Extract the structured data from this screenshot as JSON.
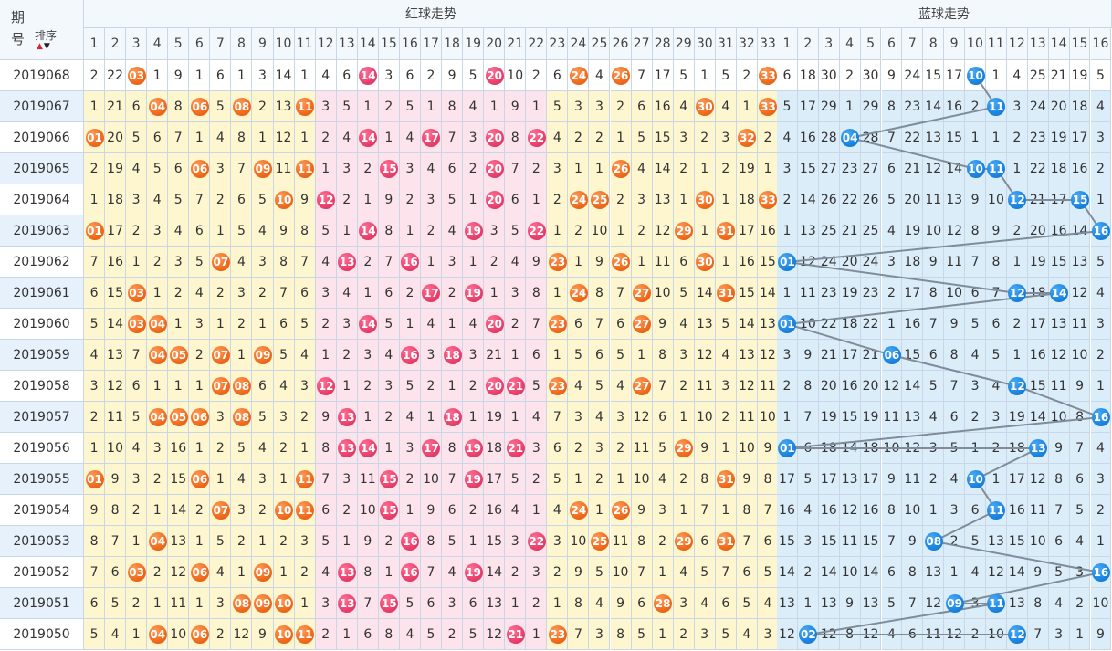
{
  "header": {
    "period_top": "期",
    "period_bottom": "号",
    "sort_label": "排序",
    "red_title": "红球走势",
    "blue_title": "蓝球走势",
    "red_cols": [
      "1",
      "2",
      "3",
      "4",
      "5",
      "6",
      "7",
      "8",
      "9",
      "10",
      "11",
      "12",
      "13",
      "14",
      "15",
      "16",
      "17",
      "18",
      "19",
      "20",
      "21",
      "22",
      "23",
      "24",
      "25",
      "26",
      "27",
      "28",
      "29",
      "30",
      "31",
      "32",
      "33"
    ],
    "blue_cols": [
      "1",
      "2",
      "3",
      "4",
      "5",
      "6",
      "7",
      "8",
      "9",
      "10",
      "11",
      "12",
      "13",
      "14",
      "15",
      "16"
    ]
  },
  "rows": [
    {
      "period": "2019068",
      "red": [
        "2",
        "22",
        "03",
        "1",
        "9",
        "1",
        "6",
        "1",
        "3",
        "14",
        "1",
        "4",
        "6",
        "14",
        "3",
        "6",
        "2",
        "9",
        "5",
        "20",
        "10",
        "2",
        "6",
        "24",
        "4",
        "26",
        "7",
        "17",
        "5",
        "1",
        "5",
        "2",
        "33"
      ],
      "blue": [
        "6",
        "18",
        "30",
        "2",
        "30",
        "9",
        "24",
        "15",
        "17",
        "10",
        "1",
        "4",
        "25",
        "21",
        "19",
        "5"
      ]
    },
    {
      "period": "2019067",
      "red": [
        "1",
        "21",
        "6",
        "04",
        "8",
        "06",
        "5",
        "08",
        "2",
        "13",
        "11",
        "3",
        "5",
        "1",
        "2",
        "5",
        "1",
        "8",
        "4",
        "1",
        "9",
        "1",
        "5",
        "3",
        "3",
        "2",
        "6",
        "16",
        "4",
        "30",
        "4",
        "1",
        "33"
      ],
      "blue": [
        "5",
        "17",
        "29",
        "1",
        "29",
        "8",
        "23",
        "14",
        "16",
        "2",
        "11",
        "3",
        "24",
        "20",
        "18",
        "4"
      ]
    },
    {
      "period": "2019066",
      "red": [
        "01",
        "20",
        "5",
        "6",
        "7",
        "1",
        "4",
        "8",
        "1",
        "12",
        "1",
        "2",
        "4",
        "14",
        "1",
        "4",
        "17",
        "7",
        "3",
        "20",
        "8",
        "22",
        "4",
        "2",
        "2",
        "1",
        "5",
        "15",
        "3",
        "2",
        "3",
        "32",
        "2"
      ],
      "blue": [
        "4",
        "16",
        "28",
        "04",
        "28",
        "7",
        "22",
        "13",
        "15",
        "1",
        "1",
        "2",
        "23",
        "19",
        "17",
        "3"
      ]
    },
    {
      "period": "2019065",
      "red": [
        "2",
        "19",
        "4",
        "5",
        "6",
        "06",
        "3",
        "7",
        "09",
        "11",
        "11",
        "1",
        "3",
        "2",
        "15",
        "3",
        "4",
        "6",
        "2",
        "20",
        "7",
        "2",
        "3",
        "1",
        "1",
        "26",
        "4",
        "14",
        "2",
        "1",
        "2",
        "19",
        "1"
      ],
      "blue": [
        "3",
        "15",
        "27",
        "23",
        "27",
        "6",
        "21",
        "12",
        "14",
        "10",
        "11",
        "1",
        "22",
        "18",
        "16",
        "2"
      ]
    },
    {
      "period": "2019064",
      "red": [
        "1",
        "18",
        "3",
        "4",
        "5",
        "7",
        "2",
        "6",
        "5",
        "10",
        "9",
        "12",
        "2",
        "1",
        "9",
        "2",
        "3",
        "5",
        "1",
        "20",
        "6",
        "1",
        "2",
        "24",
        "25",
        "2",
        "3",
        "13",
        "1",
        "30",
        "1",
        "18",
        "33"
      ],
      "blue": [
        "2",
        "14",
        "26",
        "22",
        "26",
        "5",
        "20",
        "11",
        "13",
        "9",
        "10",
        "12",
        "21",
        "17",
        "15",
        "1"
      ]
    },
    {
      "period": "2019063",
      "red": [
        "01",
        "17",
        "2",
        "3",
        "4",
        "6",
        "1",
        "5",
        "4",
        "9",
        "8",
        "5",
        "1",
        "14",
        "8",
        "1",
        "2",
        "4",
        "19",
        "3",
        "5",
        "22",
        "1",
        "2",
        "10",
        "1",
        "2",
        "12",
        "29",
        "1",
        "31",
        "17",
        "16"
      ],
      "blue": [
        "1",
        "13",
        "25",
        "21",
        "25",
        "4",
        "19",
        "10",
        "12",
        "8",
        "9",
        "2",
        "20",
        "16",
        "14",
        "16"
      ]
    },
    {
      "period": "2019062",
      "red": [
        "7",
        "16",
        "1",
        "2",
        "3",
        "5",
        "07",
        "4",
        "3",
        "8",
        "7",
        "4",
        "13",
        "2",
        "7",
        "16",
        "1",
        "3",
        "1",
        "2",
        "4",
        "9",
        "23",
        "1",
        "9",
        "26",
        "1",
        "11",
        "6",
        "30",
        "1",
        "16",
        "15"
      ],
      "blue": [
        "01",
        "12",
        "24",
        "20",
        "24",
        "3",
        "18",
        "9",
        "11",
        "7",
        "8",
        "1",
        "19",
        "15",
        "13",
        "5"
      ]
    },
    {
      "period": "2019061",
      "red": [
        "6",
        "15",
        "03",
        "1",
        "2",
        "4",
        "2",
        "3",
        "2",
        "7",
        "6",
        "3",
        "4",
        "1",
        "6",
        "2",
        "17",
        "2",
        "19",
        "1",
        "3",
        "8",
        "1",
        "24",
        "8",
        "7",
        "27",
        "10",
        "5",
        "14",
        "31",
        "15",
        "14"
      ],
      "blue": [
        "1",
        "11",
        "23",
        "19",
        "23",
        "2",
        "17",
        "8",
        "10",
        "6",
        "7",
        "12",
        "18",
        "14",
        "12",
        "4"
      ]
    },
    {
      "period": "2019060",
      "red": [
        "5",
        "14",
        "03",
        "04",
        "1",
        "3",
        "1",
        "2",
        "1",
        "6",
        "5",
        "2",
        "3",
        "14",
        "5",
        "1",
        "4",
        "1",
        "4",
        "20",
        "2",
        "7",
        "23",
        "6",
        "7",
        "6",
        "27",
        "9",
        "4",
        "13",
        "5",
        "14",
        "13"
      ],
      "blue": [
        "01",
        "10",
        "22",
        "18",
        "22",
        "1",
        "16",
        "7",
        "9",
        "5",
        "6",
        "2",
        "17",
        "13",
        "11",
        "3"
      ]
    },
    {
      "period": "2019059",
      "red": [
        "4",
        "13",
        "7",
        "04",
        "05",
        "2",
        "07",
        "1",
        "09",
        "5",
        "4",
        "1",
        "2",
        "3",
        "4",
        "16",
        "3",
        "18",
        "3",
        "21",
        "1",
        "6",
        "1",
        "5",
        "6",
        "5",
        "1",
        "8",
        "3",
        "12",
        "4",
        "13",
        "12"
      ],
      "blue": [
        "3",
        "9",
        "21",
        "17",
        "21",
        "06",
        "15",
        "6",
        "8",
        "4",
        "5",
        "1",
        "16",
        "12",
        "10",
        "2"
      ]
    },
    {
      "period": "2019058",
      "red": [
        "3",
        "12",
        "6",
        "1",
        "1",
        "1",
        "07",
        "08",
        "6",
        "4",
        "3",
        "12",
        "1",
        "2",
        "3",
        "5",
        "2",
        "1",
        "2",
        "20",
        "21",
        "5",
        "23",
        "4",
        "5",
        "4",
        "27",
        "7",
        "2",
        "11",
        "3",
        "12",
        "11"
      ],
      "blue": [
        "2",
        "8",
        "20",
        "16",
        "20",
        "12",
        "14",
        "5",
        "7",
        "3",
        "4",
        "12",
        "15",
        "11",
        "9",
        "1"
      ]
    },
    {
      "period": "2019057",
      "red": [
        "2",
        "11",
        "5",
        "04",
        "05",
        "06",
        "3",
        "08",
        "5",
        "3",
        "2",
        "9",
        "13",
        "1",
        "2",
        "4",
        "1",
        "18",
        "1",
        "19",
        "1",
        "4",
        "7",
        "3",
        "4",
        "3",
        "12",
        "6",
        "1",
        "10",
        "2",
        "11",
        "10"
      ],
      "blue": [
        "1",
        "7",
        "19",
        "15",
        "19",
        "11",
        "13",
        "4",
        "6",
        "2",
        "3",
        "19",
        "14",
        "10",
        "8",
        "16"
      ]
    },
    {
      "period": "2019056",
      "red": [
        "1",
        "10",
        "4",
        "3",
        "16",
        "1",
        "2",
        "5",
        "4",
        "2",
        "1",
        "8",
        "13",
        "14",
        "1",
        "3",
        "17",
        "8",
        "19",
        "18",
        "21",
        "3",
        "6",
        "2",
        "3",
        "2",
        "11",
        "5",
        "29",
        "9",
        "1",
        "10",
        "9"
      ],
      "blue": [
        "01",
        "6",
        "18",
        "14",
        "18",
        "10",
        "12",
        "3",
        "5",
        "1",
        "2",
        "18",
        "13",
        "9",
        "7",
        "4"
      ]
    },
    {
      "period": "2019055",
      "red": [
        "01",
        "9",
        "3",
        "2",
        "15",
        "06",
        "1",
        "4",
        "3",
        "1",
        "11",
        "7",
        "3",
        "11",
        "15",
        "2",
        "10",
        "7",
        "19",
        "17",
        "5",
        "2",
        "5",
        "1",
        "2",
        "1",
        "10",
        "4",
        "2",
        "8",
        "31",
        "9",
        "8"
      ],
      "blue": [
        "17",
        "5",
        "17",
        "13",
        "17",
        "9",
        "11",
        "2",
        "4",
        "10",
        "1",
        "17",
        "12",
        "8",
        "6",
        "3"
      ]
    },
    {
      "period": "2019054",
      "red": [
        "9",
        "8",
        "2",
        "1",
        "14",
        "2",
        "07",
        "3",
        "2",
        "10",
        "11",
        "6",
        "2",
        "10",
        "15",
        "1",
        "9",
        "6",
        "2",
        "16",
        "4",
        "1",
        "4",
        "24",
        "1",
        "26",
        "9",
        "3",
        "1",
        "7",
        "1",
        "8",
        "7"
      ],
      "blue": [
        "16",
        "4",
        "16",
        "12",
        "16",
        "8",
        "10",
        "1",
        "3",
        "6",
        "11",
        "16",
        "11",
        "7",
        "5",
        "2"
      ]
    },
    {
      "period": "2019053",
      "red": [
        "8",
        "7",
        "1",
        "04",
        "13",
        "1",
        "5",
        "2",
        "1",
        "2",
        "3",
        "5",
        "1",
        "9",
        "2",
        "16",
        "8",
        "5",
        "1",
        "15",
        "3",
        "22",
        "3",
        "10",
        "25",
        "11",
        "8",
        "2",
        "29",
        "6",
        "31",
        "7",
        "6"
      ],
      "blue": [
        "15",
        "3",
        "15",
        "11",
        "15",
        "7",
        "9",
        "08",
        "2",
        "5",
        "13",
        "15",
        "10",
        "6",
        "4",
        "1"
      ]
    },
    {
      "period": "2019052",
      "red": [
        "7",
        "6",
        "03",
        "2",
        "12",
        "06",
        "4",
        "1",
        "09",
        "1",
        "2",
        "4",
        "13",
        "8",
        "1",
        "16",
        "7",
        "4",
        "19",
        "14",
        "2",
        "3",
        "2",
        "9",
        "5",
        "10",
        "7",
        "1",
        "4",
        "5",
        "7",
        "6",
        "5"
      ],
      "blue": [
        "14",
        "2",
        "14",
        "10",
        "14",
        "6",
        "8",
        "13",
        "1",
        "4",
        "12",
        "14",
        "9",
        "5",
        "3",
        "16"
      ]
    },
    {
      "period": "2019051",
      "red": [
        "6",
        "5",
        "2",
        "1",
        "11",
        "1",
        "3",
        "08",
        "09",
        "10",
        "1",
        "3",
        "13",
        "7",
        "15",
        "5",
        "6",
        "3",
        "6",
        "13",
        "1",
        "2",
        "1",
        "8",
        "4",
        "9",
        "6",
        "28",
        "3",
        "4",
        "6",
        "5",
        "4"
      ],
      "blue": [
        "13",
        "1",
        "13",
        "9",
        "13",
        "5",
        "7",
        "12",
        "09",
        "3",
        "11",
        "13",
        "8",
        "4",
        "2",
        "10"
      ]
    },
    {
      "period": "2019050",
      "red": [
        "5",
        "4",
        "1",
        "04",
        "10",
        "06",
        "2",
        "12",
        "9",
        "10",
        "11",
        "2",
        "1",
        "6",
        "8",
        "4",
        "5",
        "2",
        "5",
        "12",
        "21",
        "1",
        "23",
        "7",
        "3",
        "8",
        "5",
        "1",
        "2",
        "3",
        "5",
        "4",
        "3"
      ],
      "blue": [
        "12",
        "02",
        "12",
        "8",
        "12",
        "4",
        "6",
        "11",
        "12",
        "2",
        "10",
        "12",
        "7",
        "3",
        "1",
        "9"
      ]
    }
  ],
  "colors": {
    "orange_ball": "#ef6a1c",
    "pink_ball": "#e8406c",
    "blue_ball": "#1b84df",
    "yellow_zone": "#fdf6cf",
    "pink_zone": "#fde3ec",
    "blue_zone": "#dcedfa",
    "line": "#7f8c99"
  }
}
